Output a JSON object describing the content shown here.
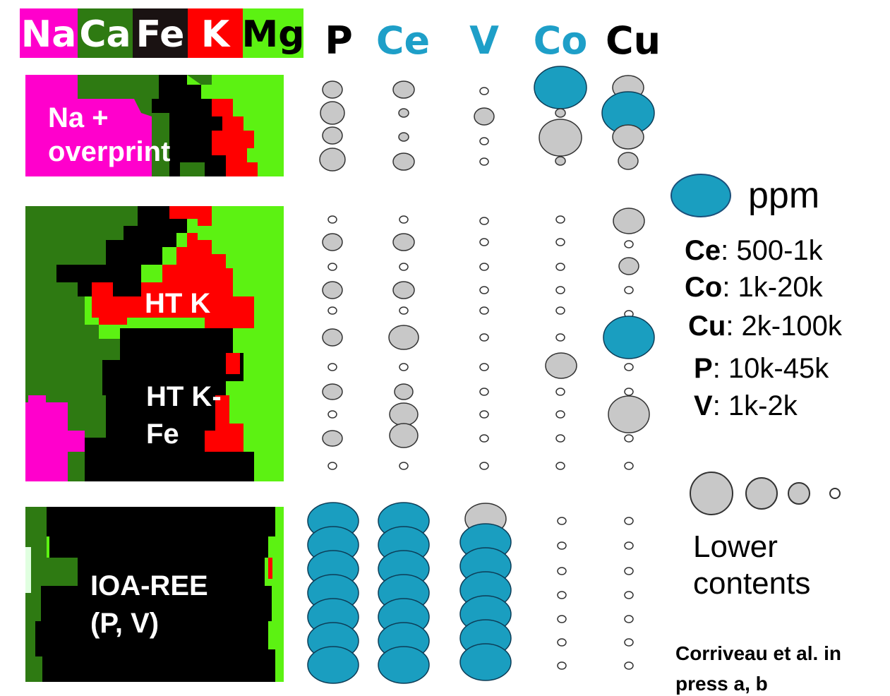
{
  "colors": {
    "Na": "#ff00cc",
    "Ca": "#2e7a12",
    "Fe": "#000000",
    "K": "#ff0000",
    "Mg": "#66ff11",
    "bubble_high": "#1a9ec0",
    "bubble_low": "#c8c8c8",
    "element_label_blue": "#1e9fc8"
  },
  "header": {
    "alteration_labels": [
      {
        "text": "Na",
        "color_key": "Na",
        "text_color": "#ffffff"
      },
      {
        "text": "Ca",
        "color_key": "Ca",
        "text_color": "#ffffff"
      },
      {
        "text": "Fe",
        "color_key": "Fe",
        "text_color": "#ffffff"
      },
      {
        "text": "K",
        "color_key": "K",
        "text_color": "#ffffff"
      },
      {
        "text": "Mg",
        "color_key": "Mg",
        "text_color": "#000000"
      }
    ],
    "element_labels": [
      {
        "text": "P",
        "color": "#000000"
      },
      {
        "text": "Ce",
        "color": "#1e9fc8"
      },
      {
        "text": "V",
        "color": "#1e9fc8"
      },
      {
        "text": "Co",
        "color": "#1e9fc8"
      },
      {
        "text": "Cu",
        "color": "#000000"
      }
    ]
  },
  "panels": [
    {
      "label_lines": [
        "Na +",
        "overprint"
      ]
    },
    {
      "label_lines": [
        "HT K"
      ]
    },
    {
      "label_lines": [
        "HT K-",
        "Fe"
      ]
    },
    {
      "label_lines": [
        "IOA-REE",
        "(P, V)"
      ]
    }
  ],
  "bubble_grades": {
    "note": "bubble size class per element and sample; 0 = smallest grey, 4 = large grey, H = high (blue)"
  },
  "legend": {
    "ppm_label": "ppm",
    "ranges": [
      {
        "element": "Ce",
        "range": ": 500-1k"
      },
      {
        "element": "Co",
        "range": ": 1k-20k"
      },
      {
        "element": "Cu",
        "range": ": 2k-100k"
      },
      {
        "element": "P",
        "range": ": 10k-45k"
      },
      {
        "element": "V",
        "range": ": 1k-2k"
      }
    ],
    "lower_label": [
      "Lower",
      "contents"
    ]
  },
  "citation": [
    "Corriveau et al. in",
    "press a, b"
  ]
}
